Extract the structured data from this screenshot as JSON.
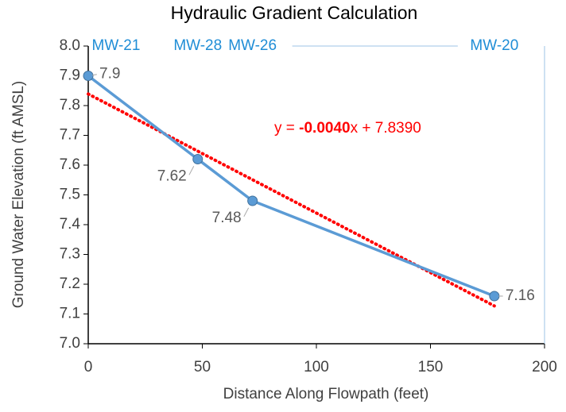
{
  "chart_data": {
    "type": "line",
    "title": "Hydraulic Gradient Calculation",
    "x_label": "Distance Along Flowpath (feet)",
    "y_label": "Ground Water Elevation (ft AMSL)",
    "x": [
      0,
      48,
      72,
      178
    ],
    "series": [
      {
        "name": "Ground Water Elevation",
        "color": "#5b9bd5",
        "values": [
          7.9,
          7.62,
          7.48,
          7.16
        ]
      }
    ],
    "xlim": [
      0,
      200
    ],
    "xticks": [
      0,
      50,
      100,
      150,
      200
    ],
    "ylim": [
      7.0,
      8.0
    ],
    "yticks": [
      {
        "value": 7.0,
        "label": "7.0"
      },
      7.1,
      7.2,
      7.3,
      7.4,
      7.5,
      7.6,
      7.7,
      7.8,
      7.9,
      {
        "value": 8.0,
        "label": "8.0"
      }
    ],
    "well_labels": [
      {
        "label": "MW-21",
        "x": 0
      },
      {
        "label": "MW-28",
        "x": 48
      },
      {
        "label": "MW-26",
        "x": 72
      },
      {
        "label": "MW-20",
        "x": 178
      }
    ],
    "well_label_color": "#1f8dd6",
    "trendline": {
      "equation": [
        "y = ",
        "-0.0040",
        "x + 7.8390"
      ],
      "slope": -0.004,
      "intercept": 7.839,
      "color": "#ff0000"
    }
  }
}
